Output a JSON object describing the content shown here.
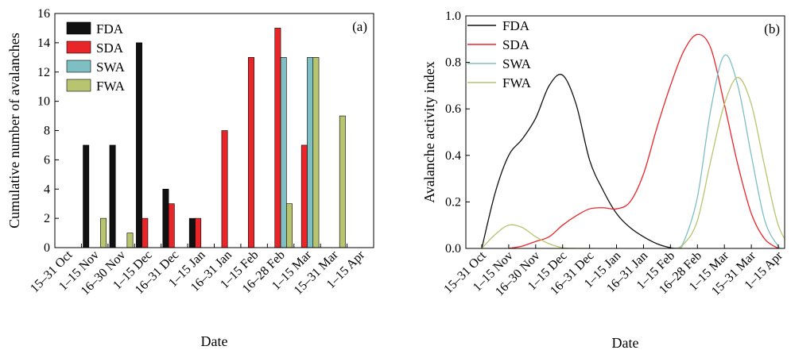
{
  "colors": {
    "FDA": "#111111",
    "SDA": "#e8262a",
    "SWA": "#7dbfc3",
    "FWA": "#b8c470"
  },
  "chart_data": [
    {
      "type": "bar",
      "panel_label": "(a)",
      "xlabel": "Date",
      "ylabel": "Cumulative number of avalanches",
      "ylim": [
        0,
        16
      ],
      "yticks": [
        "0",
        "2",
        "4",
        "6",
        "8",
        "10",
        "12",
        "14",
        "16"
      ],
      "categories": [
        "15–31 Oct",
        "1–15 Nov",
        "16–30 Nov",
        "1–15 Dec",
        "16–31 Dec",
        "1–15 Jan",
        "16–31 Jan",
        "1–15 Feb",
        "16–28 Feb",
        "1–15 Mar",
        "15–31 Mar",
        "1–15 Apr"
      ],
      "legend_position": "top-left",
      "series": [
        {
          "name": "FDA",
          "values": [
            0,
            7,
            7,
            14,
            4,
            2,
            0,
            0,
            0,
            0,
            0,
            0
          ]
        },
        {
          "name": "SDA",
          "values": [
            0,
            0,
            0,
            2,
            3,
            2,
            8,
            13,
            15,
            7,
            0,
            0
          ]
        },
        {
          "name": "SWA",
          "values": [
            0,
            0,
            0,
            0,
            0,
            0,
            0,
            0,
            13,
            13,
            0,
            0
          ]
        },
        {
          "name": "FWA",
          "values": [
            0,
            2,
            1,
            0,
            0,
            0,
            0,
            0,
            3,
            13,
            9,
            0
          ]
        }
      ]
    },
    {
      "type": "line",
      "panel_label": "(b)",
      "xlabel": "Date",
      "ylabel": "Avalanche activity index",
      "ylim": [
        0,
        1
      ],
      "yticks": [
        "0.0",
        "0.2",
        "0.4",
        "0.6",
        "0.8",
        "1.0"
      ],
      "categories": [
        "15–31 Oct",
        "1–15 Nov",
        "16–30 Nov",
        "1–15 Dec",
        "16–31 Dec",
        "1–15 Jan",
        "16–31 Jan",
        "1–15 Feb",
        "16–28 Feb",
        "1–15 Mar",
        "15–31 Mar",
        "1–15 Apr"
      ],
      "legend_position": "top-left",
      "series": [
        {
          "name": "FDA",
          "x": [
            0,
            0.5,
            1,
            1.5,
            2,
            2.5,
            3,
            3.5,
            4,
            4.5,
            5,
            5.5,
            6,
            6.5,
            7,
            7.4
          ],
          "values": [
            0,
            0.24,
            0.4,
            0.47,
            0.56,
            0.7,
            0.745,
            0.62,
            0.38,
            0.25,
            0.15,
            0.09,
            0.05,
            0.02,
            0.003,
            0
          ]
        },
        {
          "name": "SDA",
          "x": [
            1,
            1.5,
            2,
            2.5,
            3,
            3.5,
            4,
            4.5,
            5,
            5.5,
            6,
            6.5,
            7,
            7.5,
            8,
            8.5,
            9,
            9.5,
            10,
            10.5,
            11
          ],
          "values": [
            0,
            0.01,
            0.03,
            0.05,
            0.1,
            0.14,
            0.17,
            0.175,
            0.17,
            0.2,
            0.32,
            0.52,
            0.7,
            0.85,
            0.92,
            0.86,
            0.62,
            0.36,
            0.15,
            0.04,
            0
          ]
        },
        {
          "name": "SWA",
          "x": [
            7.2,
            7.5,
            8,
            8.5,
            9,
            9.5,
            10,
            10.5,
            11,
            11.2
          ],
          "values": [
            0,
            0.03,
            0.22,
            0.6,
            0.83,
            0.7,
            0.4,
            0.12,
            0.01,
            0
          ]
        },
        {
          "name": "FWA",
          "x": [
            0,
            0.5,
            1,
            1.5,
            2,
            2.5,
            3,
            3.5,
            4,
            7,
            7.5,
            8,
            8.5,
            9,
            9.5,
            10,
            10.5,
            11,
            11.5,
            12
          ],
          "values": [
            0,
            0.06,
            0.1,
            0.09,
            0.05,
            0.02,
            0.003,
            0,
            0,
            0,
            0.02,
            0.12,
            0.38,
            0.62,
            0.735,
            0.62,
            0.35,
            0.1,
            0.01,
            0
          ]
        }
      ]
    }
  ]
}
